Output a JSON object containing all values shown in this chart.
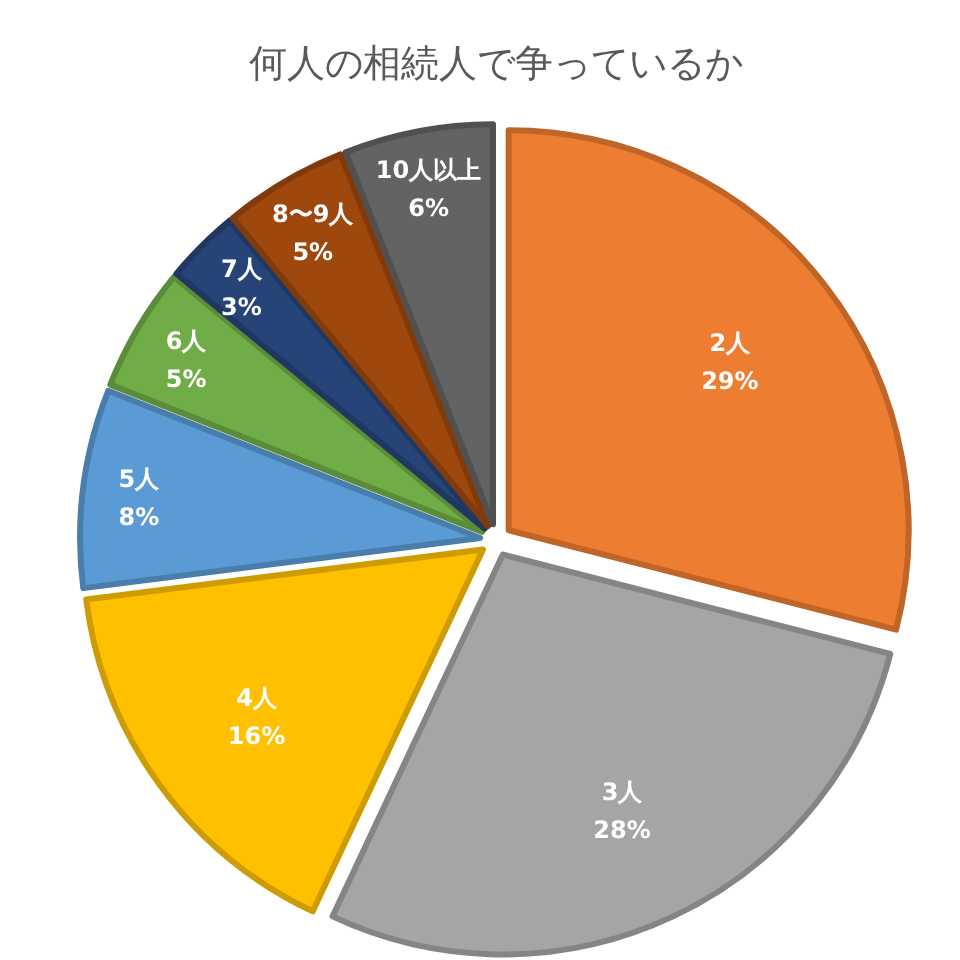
{
  "chart_data": {
    "type": "pie",
    "title": "何人の相続人で争っているか",
    "categories": [
      "2人",
      "3人",
      "4人",
      "5人",
      "6人",
      "7人",
      "8〜9人",
      "10人以上"
    ],
    "values": [
      29,
      28,
      16,
      8,
      5,
      3,
      5,
      6
    ],
    "value_labels": [
      "29%",
      "28%",
      "16%",
      "8%",
      "5%",
      "3%",
      "5%",
      "6%"
    ],
    "colors": [
      "#ed7d31",
      "#a5a5a5",
      "#ffc000",
      "#5b9bd5",
      "#70ad47",
      "#264478",
      "#9e480e",
      "#636363"
    ],
    "legend": false
  }
}
